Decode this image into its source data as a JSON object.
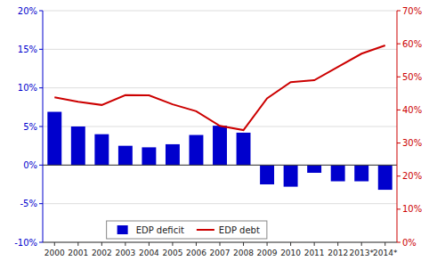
{
  "chart_data": {
    "type": "bar",
    "categories": [
      "2000",
      "2001",
      "2002",
      "2003",
      "2004",
      "2005",
      "2006",
      "2007",
      "2008",
      "2009",
      "2010",
      "2011",
      "2012",
      "2013*",
      "2014*"
    ],
    "series": [
      {
        "name": "EDP deficit",
        "color": "#0000CD",
        "values": [
          6.9,
          5.0,
          4.0,
          2.5,
          2.3,
          2.7,
          3.9,
          5.1,
          4.2,
          -2.5,
          -2.8,
          -1.0,
          -2.1,
          -2.1,
          -3.2
        ]
      },
      {
        "name": "EDP debt",
        "color": "#CC0000",
        "type": "line",
        "axis": "y2",
        "values": [
          43.8,
          42.5,
          41.5,
          44.5,
          44.4,
          41.7,
          39.6,
          35.2,
          33.9,
          43.5,
          48.4,
          49.0,
          53.0,
          57.0,
          59.5
        ]
      }
    ],
    "ylim": [
      -10,
      20
    ],
    "yticks": [
      {
        "value": -10,
        "label": "-10%"
      },
      {
        "value": -5,
        "label": "-5%"
      },
      {
        "value": 0,
        "label": "0%"
      },
      {
        "value": 5,
        "label": "5%"
      },
      {
        "value": 10,
        "label": "10%"
      },
      {
        "value": 15,
        "label": "15%"
      },
      {
        "value": 20,
        "label": "20%"
      }
    ],
    "y2lim": [
      0,
      70
    ],
    "y2ticks": [
      {
        "value": 0,
        "label": "0%"
      },
      {
        "value": 10,
        "label": "10%"
      },
      {
        "value": 20,
        "label": "20%"
      },
      {
        "value": 30,
        "label": "30%"
      },
      {
        "value": 40,
        "label": "40%"
      },
      {
        "value": 50,
        "label": "50%"
      },
      {
        "value": 60,
        "label": "60%"
      },
      {
        "value": 70,
        "label": "70%"
      }
    ],
    "grid": true,
    "legend": "lower left"
  }
}
